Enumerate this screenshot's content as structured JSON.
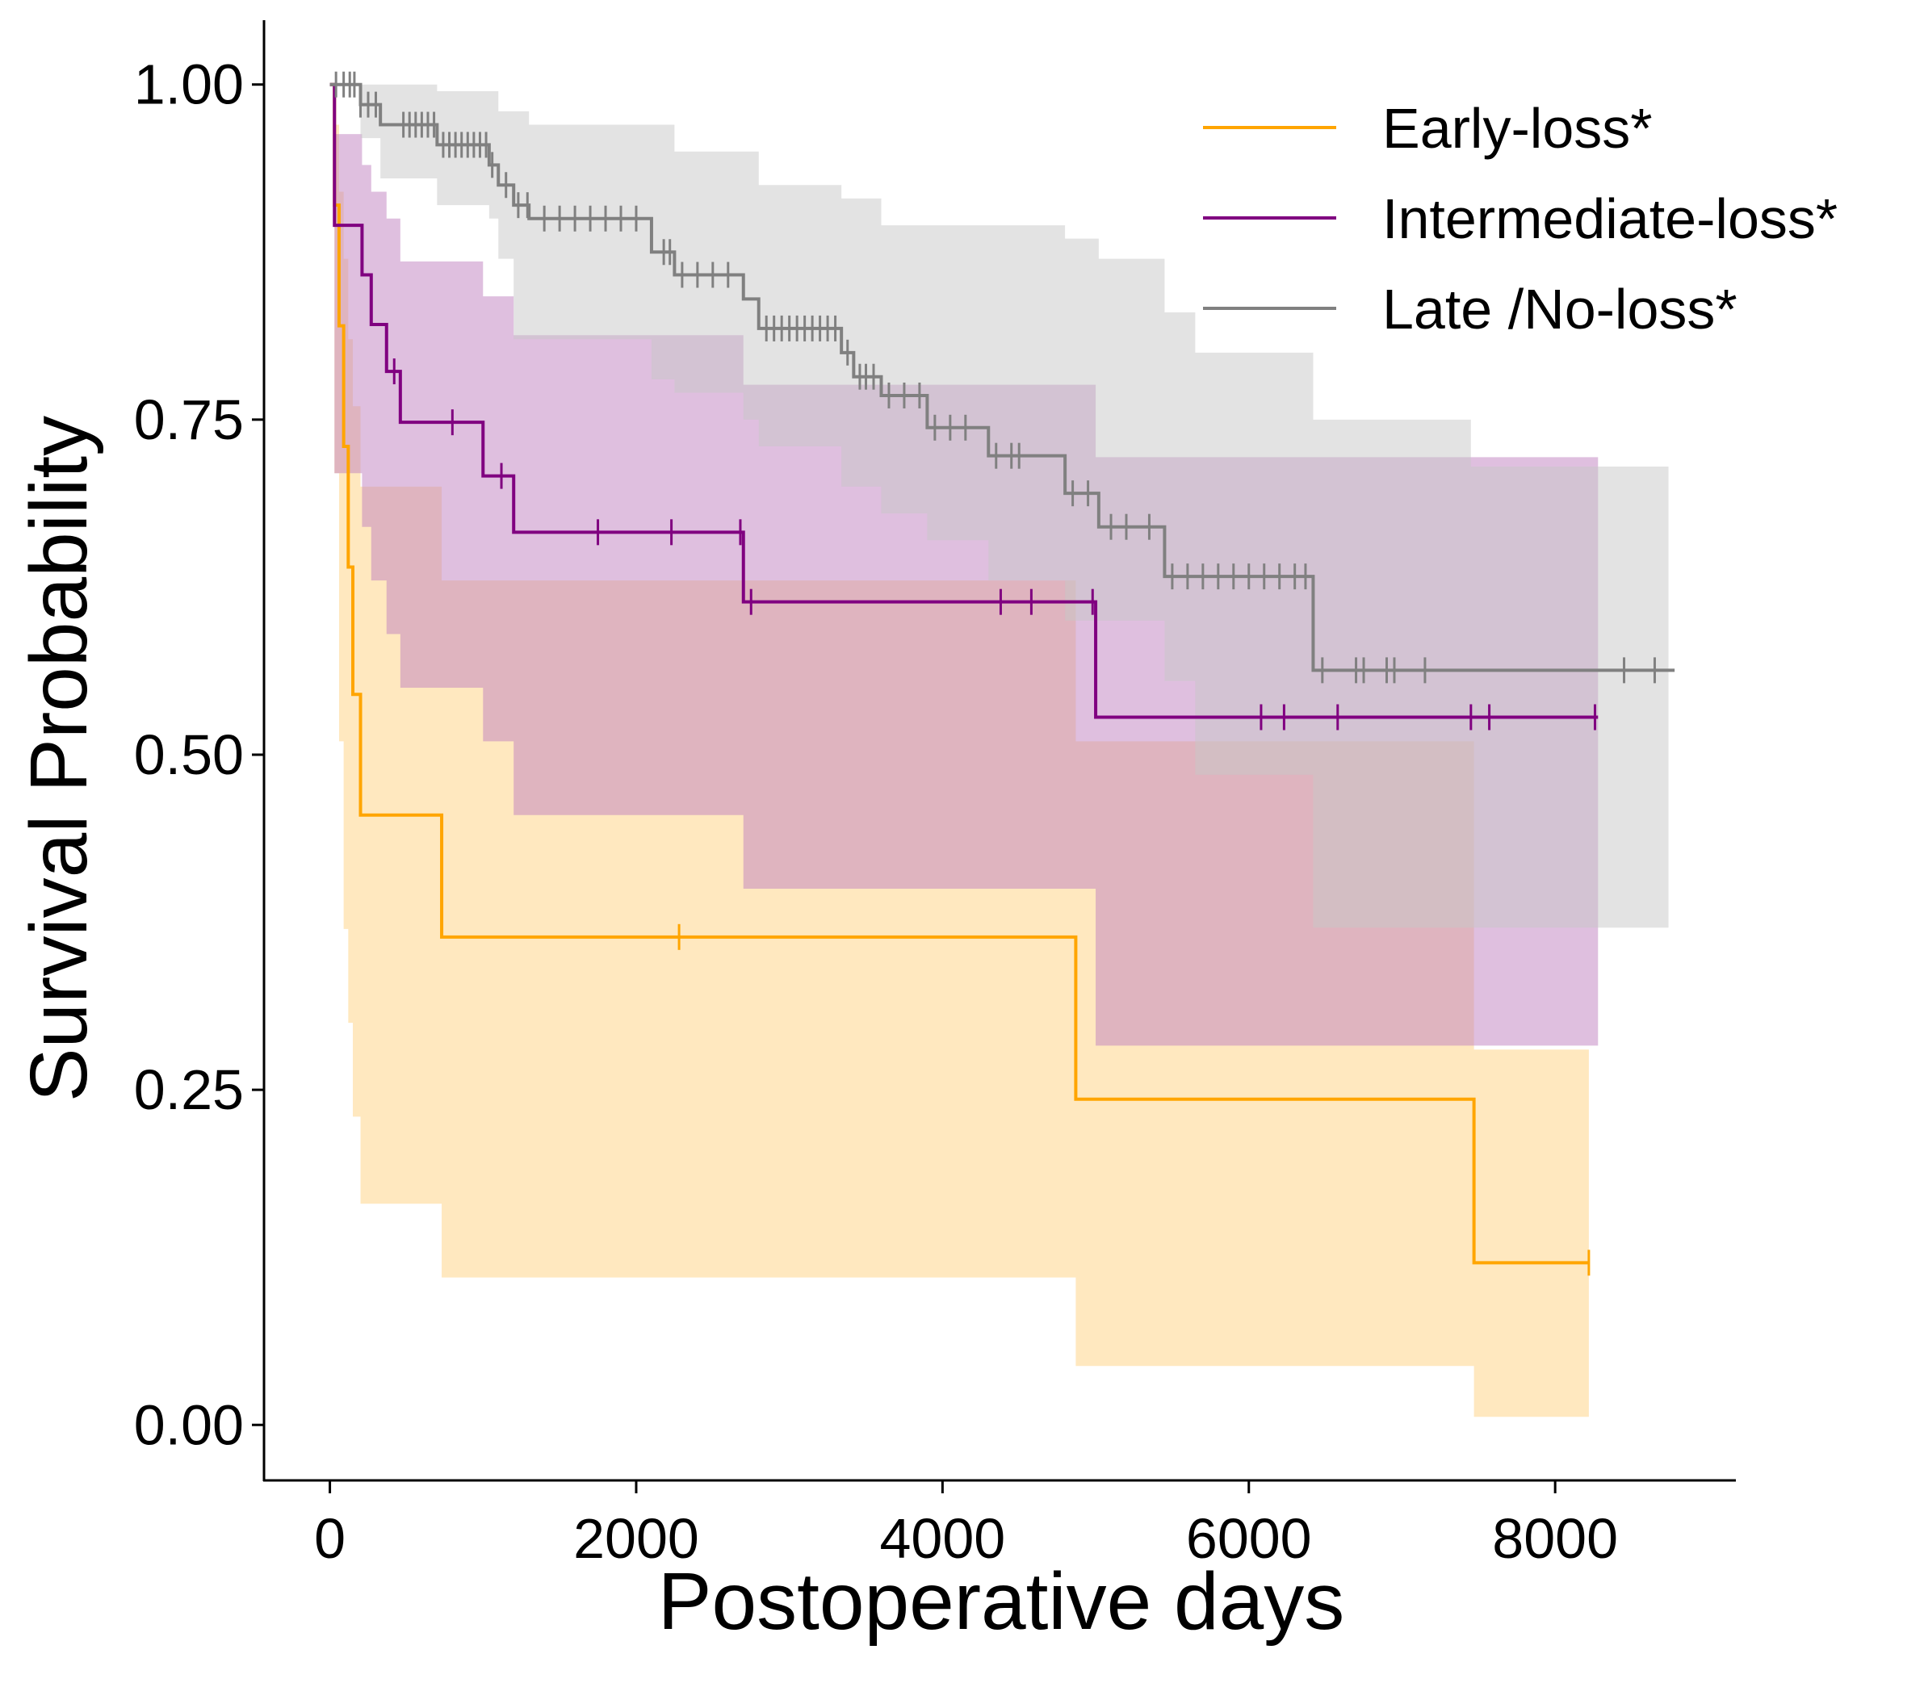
{
  "chart_data": {
    "type": "line",
    "subtype": "kaplan-meier-survival",
    "xlabel": "Postoperative days",
    "ylabel": "Survival Probability",
    "xlim": [
      -430,
      9180
    ],
    "ylim": [
      -0.042,
      1.048
    ],
    "xticks": [
      0,
      2000,
      4000,
      6000,
      8000
    ],
    "xtick_labels": [
      "0",
      "2000",
      "4000",
      "6000",
      "8000"
    ],
    "yticks": [
      0.0,
      0.25,
      0.5,
      0.75,
      1.0
    ],
    "ytick_labels": [
      "0.00",
      "0.25",
      "0.50",
      "0.75",
      "1.00"
    ],
    "grid": false,
    "legend_position": "top-right",
    "series": [
      {
        "name": "Early-loss*",
        "color": "#FFA500",
        "fill_color": "#FFD27F",
        "steps": [
          [
            0,
            1.0
          ],
          [
            30,
            0.91
          ],
          [
            60,
            0.82
          ],
          [
            90,
            0.73
          ],
          [
            120,
            0.64
          ],
          [
            150,
            0.545
          ],
          [
            200,
            0.455
          ],
          [
            730,
            0.364
          ],
          [
            4870,
            0.243
          ],
          [
            7470,
            0.121
          ],
          [
            8220,
            0.121
          ]
        ],
        "ci_lower": [
          [
            0,
            1.0
          ],
          [
            30,
            0.71
          ],
          [
            60,
            0.51
          ],
          [
            90,
            0.37
          ],
          [
            120,
            0.3
          ],
          [
            150,
            0.23
          ],
          [
            200,
            0.165
          ],
          [
            730,
            0.11
          ],
          [
            4870,
            0.044
          ],
          [
            7470,
            0.006
          ],
          [
            8220,
            0.006
          ]
        ],
        "ci_upper": [
          [
            0,
            1.0
          ],
          [
            30,
            0.97
          ],
          [
            60,
            0.92
          ],
          [
            90,
            0.87
          ],
          [
            120,
            0.81
          ],
          [
            150,
            0.76
          ],
          [
            200,
            0.7
          ],
          [
            730,
            0.63
          ],
          [
            4870,
            0.51
          ],
          [
            7470,
            0.28
          ],
          [
            8220,
            0.28
          ]
        ],
        "censored_x": [
          2280,
          8220
        ]
      },
      {
        "name": "Intermediate-loss*",
        "color": "#800080",
        "fill_color": "#C080C0",
        "steps": [
          [
            0,
            1.0
          ],
          [
            30,
            0.895
          ],
          [
            210,
            0.858
          ],
          [
            270,
            0.821
          ],
          [
            370,
            0.786
          ],
          [
            460,
            0.748
          ],
          [
            1000,
            0.708
          ],
          [
            1200,
            0.666
          ],
          [
            2700,
            0.614
          ],
          [
            5000,
            0.528
          ],
          [
            8280,
            0.528
          ]
        ],
        "ci_lower": [
          [
            0,
            1.0
          ],
          [
            30,
            0.71
          ],
          [
            210,
            0.67
          ],
          [
            270,
            0.63
          ],
          [
            370,
            0.59
          ],
          [
            460,
            0.55
          ],
          [
            1000,
            0.51
          ],
          [
            1200,
            0.455
          ],
          [
            2700,
            0.4
          ],
          [
            5000,
            0.283
          ],
          [
            8280,
            0.283
          ]
        ],
        "ci_upper": [
          [
            0,
            1.0
          ],
          [
            30,
            0.963
          ],
          [
            210,
            0.94
          ],
          [
            270,
            0.92
          ],
          [
            370,
            0.9
          ],
          [
            460,
            0.868
          ],
          [
            1000,
            0.842
          ],
          [
            1200,
            0.813
          ],
          [
            2700,
            0.776
          ],
          [
            5000,
            0.722
          ],
          [
            8280,
            0.722
          ]
        ],
        "censored_x": [
          420,
          800,
          1120,
          1750,
          2230,
          2680,
          2750,
          4380,
          4580,
          4980,
          6080,
          6230,
          6580,
          7450,
          7570,
          8260
        ]
      },
      {
        "name": "Late /No-loss*",
        "color": "#808080",
        "fill_color": "#C8C8C8",
        "steps": [
          [
            0,
            1.0
          ],
          [
            200,
            0.985
          ],
          [
            330,
            0.97
          ],
          [
            700,
            0.955
          ],
          [
            1040,
            0.94
          ],
          [
            1100,
            0.925
          ],
          [
            1200,
            0.91
          ],
          [
            1300,
            0.9
          ],
          [
            2100,
            0.875
          ],
          [
            2250,
            0.858
          ],
          [
            2700,
            0.84
          ],
          [
            2800,
            0.818
          ],
          [
            3340,
            0.8
          ],
          [
            3420,
            0.782
          ],
          [
            3600,
            0.768
          ],
          [
            3900,
            0.744
          ],
          [
            4300,
            0.723
          ],
          [
            4800,
            0.695
          ],
          [
            5020,
            0.67
          ],
          [
            5450,
            0.633
          ],
          [
            6420,
            0.563
          ],
          [
            8780,
            0.563
          ]
        ],
        "ci_lower": [
          [
            0,
            1.0
          ],
          [
            200,
            0.96
          ],
          [
            330,
            0.93
          ],
          [
            700,
            0.91
          ],
          [
            1040,
            0.9
          ],
          [
            1100,
            0.87
          ],
          [
            1200,
            0.81
          ],
          [
            2100,
            0.78
          ],
          [
            2250,
            0.77
          ],
          [
            2700,
            0.75
          ],
          [
            2800,
            0.73
          ],
          [
            3340,
            0.7
          ],
          [
            3600,
            0.68
          ],
          [
            3900,
            0.66
          ],
          [
            4300,
            0.63
          ],
          [
            4800,
            0.6
          ],
          [
            5450,
            0.555
          ],
          [
            5650,
            0.485
          ],
          [
            6420,
            0.371
          ],
          [
            8740,
            0.371
          ]
        ],
        "ci_upper": [
          [
            0,
            1.0
          ],
          [
            200,
            1.0
          ],
          [
            700,
            0.995
          ],
          [
            1100,
            0.98
          ],
          [
            1300,
            0.97
          ],
          [
            2250,
            0.95
          ],
          [
            2800,
            0.925
          ],
          [
            3340,
            0.915
          ],
          [
            3600,
            0.895
          ],
          [
            4800,
            0.885
          ],
          [
            5020,
            0.87
          ],
          [
            5450,
            0.83
          ],
          [
            5650,
            0.8
          ],
          [
            6420,
            0.75
          ],
          [
            7450,
            0.715
          ],
          [
            8740,
            0.715
          ]
        ],
        "censored_x": [
          40,
          90,
          130,
          160,
          200,
          250,
          300,
          480,
          520,
          560,
          600,
          640,
          680,
          740,
          780,
          820,
          860,
          900,
          940,
          980,
          1020,
          1060,
          1150,
          1230,
          1290,
          1400,
          1500,
          1600,
          1700,
          1800,
          1900,
          2000,
          2180,
          2220,
          2300,
          2400,
          2500,
          2600,
          2850,
          2900,
          2950,
          3000,
          3050,
          3100,
          3150,
          3200,
          3250,
          3300,
          3380,
          3460,
          3500,
          3550,
          3650,
          3750,
          3850,
          3950,
          4050,
          4150,
          4350,
          4450,
          4500,
          4850,
          4950,
          5100,
          5200,
          5350,
          5500,
          5600,
          5700,
          5800,
          5900,
          6000,
          6100,
          6200,
          6300,
          6370,
          6480,
          6700,
          6750,
          6900,
          6950,
          7150,
          8450,
          8650
        ]
      }
    ]
  }
}
